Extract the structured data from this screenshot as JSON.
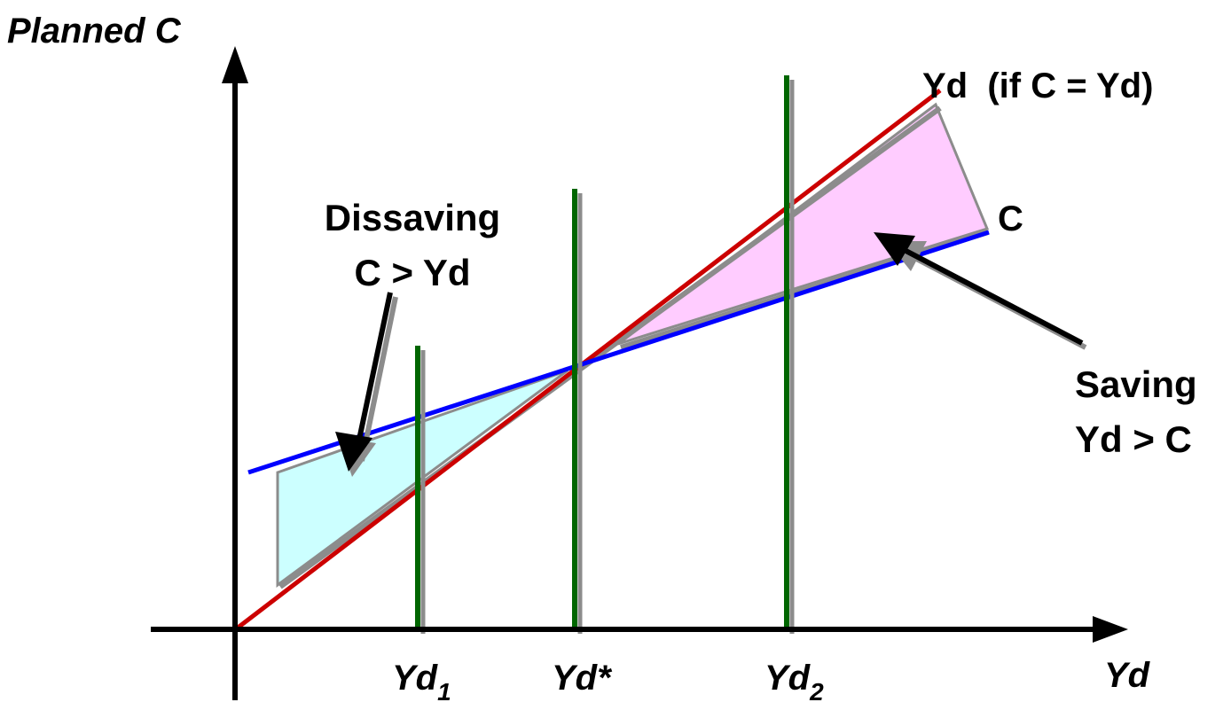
{
  "axes": {
    "y_label": "Planned C",
    "x_label": "Yd"
  },
  "lines": {
    "income_line_label": "Yd  (if C = Yd)",
    "consumption_label": "C"
  },
  "regions": {
    "dissaving": {
      "title": "Dissaving",
      "condition": "C > Yd",
      "fill": "#ccffff"
    },
    "saving": {
      "title": "Saving",
      "condition": "Yd > C",
      "fill": "#ffccff"
    }
  },
  "x_markers": [
    {
      "base": "Yd",
      "sub": "1"
    },
    {
      "base": "Yd*",
      "sub": ""
    },
    {
      "base": "Yd",
      "sub": "2"
    }
  ],
  "colors": {
    "income_line": "#cc0000",
    "consumption_line": "#0000ff",
    "markers": "#006600",
    "shadow": "#8c8c8c"
  }
}
